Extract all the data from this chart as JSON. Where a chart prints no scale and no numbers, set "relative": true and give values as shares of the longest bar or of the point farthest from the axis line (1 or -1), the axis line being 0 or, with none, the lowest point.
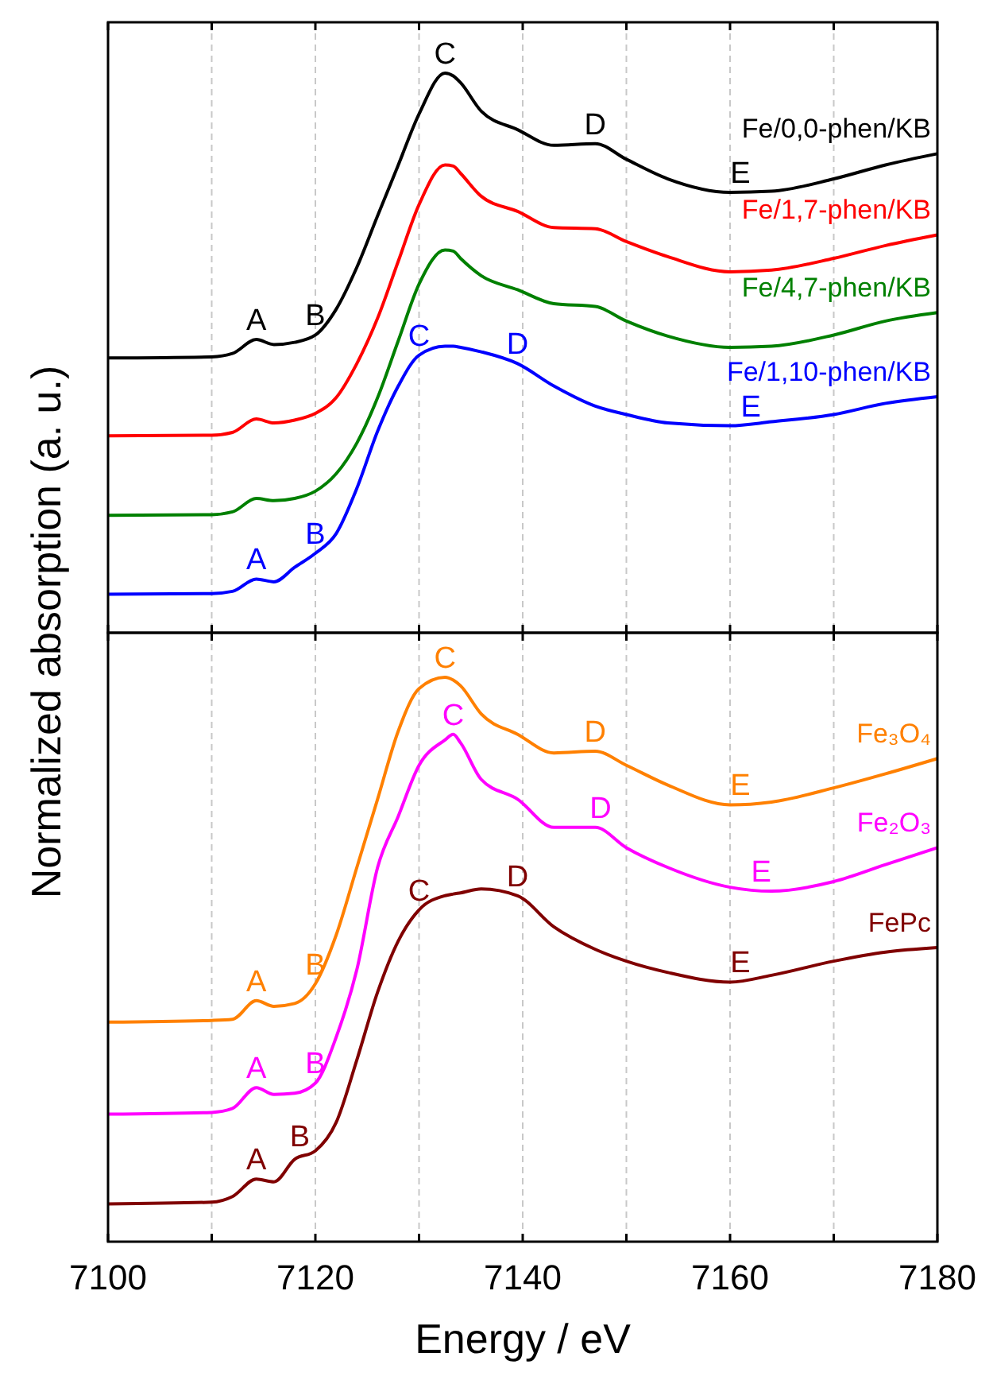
{
  "chart_data": [
    {
      "type": "line",
      "relative": true,
      "ylabel": "Normalized absorption (a. u.)",
      "xlim": [
        7100,
        7180
      ],
      "xticks": [
        {
          "value": 7100,
          "label": null
        },
        {
          "value": 7110,
          "label": null
        },
        {
          "value": 7120,
          "label": null
        },
        {
          "value": 7130,
          "label": null
        },
        {
          "value": 7140,
          "label": null
        },
        {
          "value": 7150,
          "label": null
        },
        {
          "value": 7160,
          "label": null
        },
        {
          "value": 7170,
          "label": null
        },
        {
          "value": 7180,
          "label": null
        }
      ],
      "tick_labels": false,
      "grid": "x",
      "legend": false,
      "x": [
        7100,
        7110,
        7112,
        7114.3,
        7116,
        7118,
        7120,
        7122,
        7124,
        7126,
        7128,
        7130,
        7132.5,
        7133.3,
        7134,
        7136,
        7139.5,
        7143,
        7147,
        7150,
        7154,
        7160,
        7164,
        7170,
        7175,
        7180
      ],
      "series": [
        {
          "name": "Fe/0,0-phen/KB",
          "color": "#000000",
          "values": [
            0.491,
            0.493,
            0.499,
            0.524,
            0.515,
            0.519,
            0.532,
            0.578,
            0.653,
            0.745,
            0.836,
            0.927,
            1.0,
            0.995,
            0.983,
            0.932,
            0.899,
            0.871,
            0.874,
            0.846,
            0.811,
            0.787,
            0.789,
            0.811,
            0.836,
            0.856
          ]
        },
        {
          "name": "Fe/1,7-phen/KB",
          "color": "#ff0000",
          "values": [
            0.352,
            0.353,
            0.358,
            0.382,
            0.375,
            0.38,
            0.392,
            0.42,
            0.481,
            0.562,
            0.664,
            0.765,
            0.836,
            0.834,
            0.821,
            0.78,
            0.753,
            0.724,
            0.722,
            0.699,
            0.672,
            0.645,
            0.648,
            0.669,
            0.692,
            0.711
          ]
        },
        {
          "name": "Fe/4,7-phen/KB",
          "color": "#008000",
          "values": [
            0.21,
            0.211,
            0.216,
            0.24,
            0.236,
            0.24,
            0.253,
            0.284,
            0.339,
            0.42,
            0.522,
            0.623,
            0.684,
            0.682,
            0.669,
            0.638,
            0.613,
            0.588,
            0.583,
            0.557,
            0.53,
            0.51,
            0.512,
            0.532,
            0.557,
            0.572
          ]
        },
        {
          "name": "Fe/1,10-phen/KB",
          "color": "#0000ff",
          "values": [
            0.069,
            0.07,
            0.074,
            0.096,
            0.091,
            0.117,
            0.142,
            0.177,
            0.258,
            0.36,
            0.441,
            0.496,
            0.512,
            0.512,
            0.51,
            0.502,
            0.481,
            0.441,
            0.405,
            0.39,
            0.375,
            0.37,
            0.377,
            0.39,
            0.41,
            0.422
          ]
        }
      ],
      "annotations": [
        {
          "text": "A",
          "x": 7114.3,
          "y": 0.524
        },
        {
          "text": "B",
          "x": 7120,
          "y": 0.532
        },
        {
          "text": "C",
          "x": 7132.5,
          "y": 1.0
        },
        {
          "text": "D",
          "x": 7147,
          "y": 0.874
        },
        {
          "text": "E",
          "x": 7161,
          "y": 0.787
        },
        {
          "text": "A",
          "x": 7114.3,
          "y": 0.096
        },
        {
          "text": "B",
          "x": 7120,
          "y": 0.142
        },
        {
          "text": "C",
          "x": 7130,
          "y": 0.496
        },
        {
          "text": "D",
          "x": 7139.5,
          "y": 0.481
        },
        {
          "text": "E",
          "x": 7162,
          "y": 0.37
        }
      ]
    },
    {
      "type": "line",
      "relative": true,
      "xlabel": "Energy / eV",
      "xlim": [
        7100,
        7180
      ],
      "xticks": [
        7100,
        {
          "value": 7110,
          "label": null
        },
        7120,
        {
          "value": 7130,
          "label": null
        },
        7140,
        {
          "value": 7150,
          "label": null
        },
        7160,
        {
          "value": 7170,
          "label": null
        },
        7180
      ],
      "tick_labels": "x",
      "grid": "x",
      "legend": false,
      "x": [
        7100,
        7110,
        7112,
        7114.3,
        7116,
        7118,
        7120,
        7122,
        7124,
        7126,
        7128,
        7130,
        7132.5,
        7133.3,
        7134,
        7136,
        7139.5,
        7143,
        7147,
        7150,
        7154,
        7160,
        7164,
        7170,
        7175,
        7180
      ],
      "series": [
        {
          "name": "Fe₃O₄",
          "color": "#ff8000",
          "values": [
            0.389,
            0.392,
            0.394,
            0.427,
            0.417,
            0.422,
            0.457,
            0.543,
            0.663,
            0.784,
            0.905,
            0.98,
            1.0,
            0.995,
            0.985,
            0.935,
            0.899,
            0.866,
            0.869,
            0.844,
            0.809,
            0.774,
            0.779,
            0.804,
            0.829,
            0.856
          ]
        },
        {
          "name": "Fe₂O₃",
          "color": "#ff00ff",
          "values": [
            0.226,
            0.229,
            0.236,
            0.273,
            0.261,
            0.263,
            0.281,
            0.362,
            0.482,
            0.663,
            0.754,
            0.844,
            0.889,
            0.899,
            0.884,
            0.819,
            0.784,
            0.734,
            0.734,
            0.698,
            0.663,
            0.628,
            0.621,
            0.638,
            0.668,
            0.698
          ]
        },
        {
          "name": "FePc",
          "color": "#800000",
          "values": [
            0.067,
            0.07,
            0.08,
            0.111,
            0.106,
            0.146,
            0.161,
            0.211,
            0.322,
            0.442,
            0.533,
            0.588,
            0.613,
            0.616,
            0.618,
            0.625,
            0.613,
            0.558,
            0.518,
            0.497,
            0.477,
            0.46,
            0.472,
            0.497,
            0.513,
            0.521
          ]
        }
      ],
      "annotations": [
        {
          "text": "A",
          "x": 7114.3,
          "y": 0.427
        },
        {
          "text": "B",
          "x": 7120,
          "y": 0.457
        },
        {
          "text": "C",
          "x": 7132.5,
          "y": 1.0
        },
        {
          "text": "D",
          "x": 7147,
          "y": 0.869
        },
        {
          "text": "E",
          "x": 7161,
          "y": 0.774
        },
        {
          "text": "A",
          "x": 7114.3,
          "y": 0.273
        },
        {
          "text": "B",
          "x": 7120,
          "y": 0.281
        },
        {
          "text": "C",
          "x": 7133.3,
          "y": 0.899
        },
        {
          "text": "D",
          "x": 7147.5,
          "y": 0.734
        },
        {
          "text": "E",
          "x": 7163,
          "y": 0.621
        },
        {
          "text": "A",
          "x": 7114.3,
          "y": 0.111
        },
        {
          "text": "B",
          "x": 7118.5,
          "y": 0.152
        },
        {
          "text": "C",
          "x": 7130,
          "y": 0.588
        },
        {
          "text": "D",
          "x": 7139.5,
          "y": 0.613
        },
        {
          "text": "E",
          "x": 7161,
          "y": 0.46
        }
      ]
    }
  ]
}
